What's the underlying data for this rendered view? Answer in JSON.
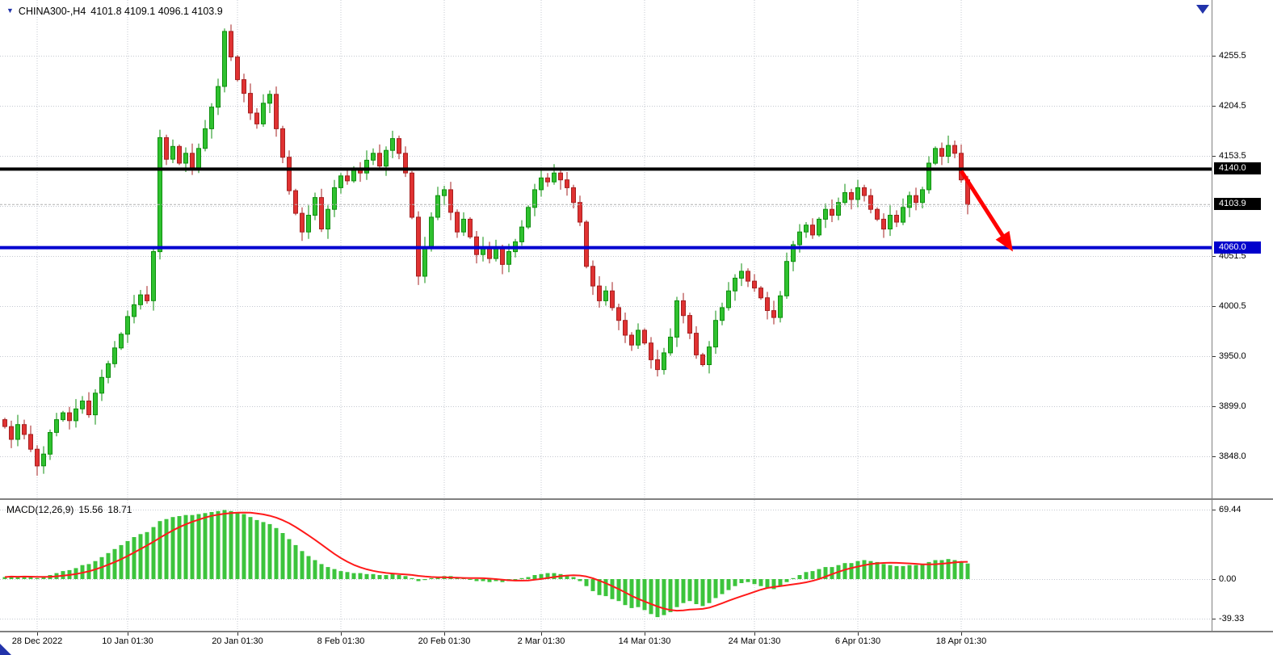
{
  "title_line": {
    "marker": "▼",
    "symbol": "CHINA300-,H4",
    "quote": "4101.8 4109.1 4096.1 4103.9"
  },
  "indicator": {
    "name": "MACD(12,26,9)",
    "macd_value": "15.56",
    "signal_value": "18.71"
  },
  "price_axis": {
    "labels": [
      "4255.5",
      "4204.5",
      "4153.5",
      "4051.5",
      "4000.5",
      "3950.0",
      "3899.0",
      "3848.0"
    ],
    "badges": [
      {
        "text": "4140.0",
        "value": 4140.0,
        "bg": "#000000"
      },
      {
        "text": "4103.9",
        "value": 4103.9,
        "bg": "#000000"
      },
      {
        "text": "4060.0",
        "value": 4060.0,
        "bg": "#0000CC"
      }
    ]
  },
  "macd_axis": {
    "labels": [
      "69.44",
      "0.00",
      "-39.33"
    ],
    "values": [
      69.44,
      0,
      -39.33
    ]
  },
  "time_axis": {
    "labels": [
      "28 Dec 2022",
      "10 Jan 01:30",
      "20 Jan 01:30",
      "8 Feb 01:30",
      "20 Feb 01:30",
      "2 Mar 01:30",
      "14 Mar 01:30",
      "24 Mar 01:30",
      "6 Apr 01:30",
      "18 Apr 01:30"
    ],
    "bar_indices": [
      5,
      19,
      36,
      52,
      68,
      83,
      99,
      116,
      132,
      148
    ]
  },
  "colors": {
    "bull_fill": "#2FC12F",
    "bull_stroke": "#0E8F0E",
    "bear_fill": "#E03232",
    "bear_stroke": "#A52020",
    "grid": "#c4c8d0",
    "resistance": "#000000",
    "support": "#0000D0",
    "bid_line": "#b0b0b0",
    "arrow": "#FF0000",
    "macd_bar": "#3CC43C",
    "macd_signal": "#FF1A1A",
    "marker": "#2233AA"
  },
  "chart_data": {
    "type": "candlestick",
    "symbol": "CHINA300-",
    "timeframe": "H4",
    "current_bar": {
      "open": 4101.8,
      "high": 4109.1,
      "low": 4096.1,
      "close": 4103.9
    },
    "price_axis_range": [
      3805,
      4312
    ],
    "price_gridlines": [
      4255.5,
      4204.5,
      4153.5,
      4102.5,
      4051.5,
      4000.5,
      3950.0,
      3899.0,
      3848.0
    ],
    "levels": {
      "resistance": 4140.0,
      "support": 4060.0,
      "last_price": 4103.9
    },
    "first_open": 3885,
    "closes": [
      3878,
      3865,
      3880,
      3870,
      3855,
      3838,
      3850,
      3872,
      3885,
      3892,
      3884,
      3896,
      3904,
      3890,
      3912,
      3928,
      3942,
      3958,
      3972,
      3990,
      4002,
      4012,
      4006,
      4056,
      4172,
      4150,
      4163,
      4146,
      4156,
      4141,
      4161,
      4181,
      4203,
      4224,
      4280,
      4254,
      4231,
      4217,
      4197,
      4186,
      4207,
      4216,
      4181,
      4152,
      4118,
      4095,
      4076,
      4093,
      4111,
      4079,
      4099,
      4121,
      4133,
      4128,
      4141,
      4136,
      4149,
      4156,
      4143,
      4159,
      4171,
      4156,
      4136,
      4091,
      4031,
      4061,
      4091,
      4113,
      4119,
      4096,
      4076,
      4089,
      4071,
      4053,
      4061,
      4049,
      4059,
      4043,
      4056,
      4066,
      4081,
      4101,
      4119,
      4131,
      4127,
      4136,
      4129,
      4121,
      4106,
      4086,
      4041,
      4021,
      4006,
      4016,
      3999,
      3986,
      3971,
      3961,
      3976,
      3963,
      3946,
      3936,
      3953,
      3969,
      4006,
      3991,
      3973,
      3951,
      3941,
      3959,
      3986,
      3999,
      4016,
      4029,
      4036,
      4026,
      4019,
      4009,
      3996,
      3989,
      4011,
      4046,
      4063,
      4076,
      4083,
      4073,
      4089,
      4099,
      4093,
      4106,
      4116,
      4109,
      4121,
      4113,
      4099,
      4089,
      4079,
      4093,
      4086,
      4101,
      4113,
      4106,
      4119,
      4146,
      4161,
      4153,
      4164,
      4156,
      4129,
      4103.9
    ],
    "annotation_arrow": {
      "from": {
        "bar": 148,
        "price": 4138
      },
      "to": {
        "bar": 156,
        "price": 4056
      }
    },
    "macd": {
      "label": "MACD(12,26,9)",
      "macd_current": 15.56,
      "signal_current": 18.71,
      "gridlines": [
        69.44,
        0,
        -39.33
      ],
      "signal_rule": "SMA9",
      "values": [
        2,
        3,
        2,
        3,
        2,
        1,
        2,
        4,
        6,
        8,
        9,
        11,
        14,
        15,
        18,
        22,
        26,
        30,
        34,
        38,
        42,
        45,
        47,
        52,
        58,
        60,
        62,
        63,
        64,
        64,
        65,
        66,
        67,
        68,
        69,
        68,
        67,
        65,
        62,
        59,
        57,
        55,
        51,
        46,
        40,
        34,
        28,
        23,
        19,
        15,
        12,
        10,
        8,
        7,
        6,
        6,
        5,
        5,
        4,
        4,
        5,
        4,
        3,
        1,
        -2,
        -1,
        1,
        2,
        3,
        3,
        2,
        1,
        0,
        -2,
        -2,
        -3,
        -2,
        -3,
        -2,
        -1,
        1,
        2,
        4,
        5,
        6,
        6,
        5,
        4,
        2,
        -2,
        -7,
        -12,
        -16,
        -17,
        -20,
        -22,
        -26,
        -29,
        -28,
        -31,
        -35,
        -38,
        -36,
        -33,
        -28,
        -24,
        -22,
        -25,
        -27,
        -24,
        -19,
        -15,
        -11,
        -7,
        -4,
        -3,
        -5,
        -7,
        -9,
        -10,
        -7,
        -3,
        1,
        4,
        7,
        8,
        10,
        12,
        12,
        14,
        16,
        16,
        18,
        19,
        18,
        17,
        15,
        14,
        13,
        13,
        14,
        14,
        15,
        17,
        19,
        19,
        20,
        19,
        17,
        15.56
      ]
    }
  }
}
